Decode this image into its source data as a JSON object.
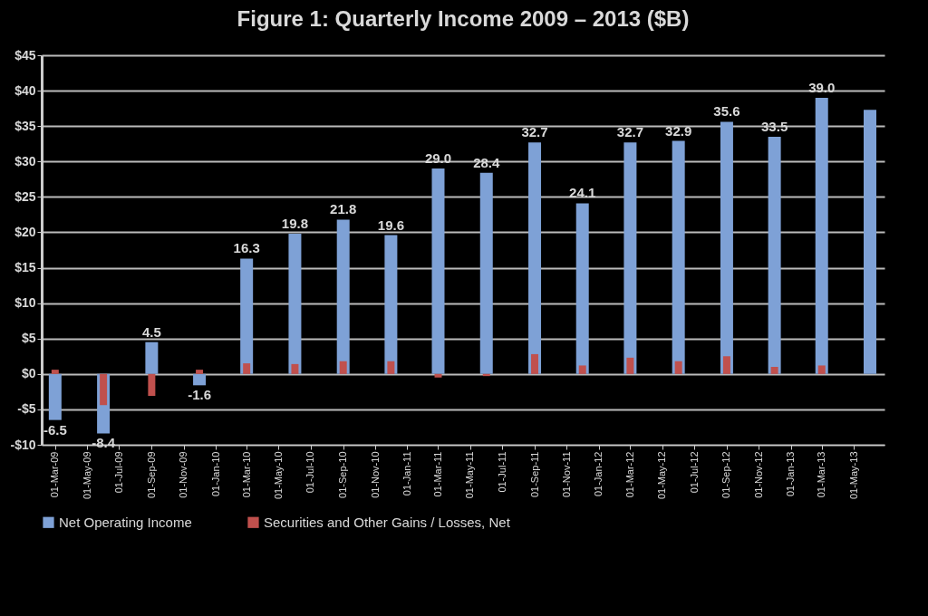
{
  "chart_data": {
    "type": "bar",
    "title": "Figure 1: Quarterly Income 2009 – 2013 ($B)",
    "x": [
      "2009-03",
      "2009-06",
      "2009-09",
      "2009-12",
      "2010-03",
      "2010-06",
      "2010-09",
      "2010-12",
      "2011-03",
      "2011-06",
      "2011-09",
      "2011-12",
      "2012-03",
      "2012-06",
      "2012-09",
      "2012-12",
      "2013-03",
      "2013-06"
    ],
    "series": [
      {
        "name": "Net Operating Income",
        "color": "#7ea1d6",
        "values": [
          -6.5,
          -8.4,
          4.5,
          -1.6,
          16.3,
          19.8,
          21.8,
          19.6,
          29.0,
          28.4,
          32.7,
          24.1,
          32.7,
          32.9,
          35.6,
          33.5,
          39.0,
          37.3
        ],
        "value_labels": [
          "-6.5",
          "-8.4",
          "4.5",
          "-1.6",
          "16.3",
          "19.8",
          "21.8",
          "19.6",
          "29.0",
          "28.4",
          "32.7",
          "24.1",
          "32.7",
          "32.9",
          "35.6",
          "33.5",
          "39.0",
          null
        ]
      },
      {
        "name": "Securities and Other Gains / Losses, Net",
        "color": "#c0504d",
        "values": [
          0.6,
          -4.4,
          -3.1,
          0.6,
          1.5,
          1.4,
          1.8,
          1.8,
          -0.5,
          -0.3,
          2.8,
          1.2,
          2.3,
          1.8,
          2.5,
          1.0,
          1.2,
          null
        ]
      }
    ],
    "ylim": [
      -10,
      45
    ],
    "yticks": [
      {
        "value": -10,
        "label": "-$10"
      },
      {
        "value": -5,
        "label": "-$5"
      },
      {
        "value": 0,
        "label": "$0"
      },
      {
        "value": 5,
        "label": "$5"
      },
      {
        "value": 10,
        "label": "$10"
      },
      {
        "value": 15,
        "label": "$15"
      },
      {
        "value": 20,
        "label": "$20"
      },
      {
        "value": 25,
        "label": "$25"
      },
      {
        "value": 30,
        "label": "$30"
      },
      {
        "value": 35,
        "label": "$35"
      },
      {
        "value": 40,
        "label": "$40"
      },
      {
        "value": 45,
        "label": "$45"
      }
    ],
    "xlim": [
      "2009-02-12",
      "2013-06-20"
    ],
    "xticks": [
      {
        "value": "2009-03-01",
        "label": "01-Mar-09"
      },
      {
        "value": "2009-05-01",
        "label": "01-May-09"
      },
      {
        "value": "2009-07-01",
        "label": "01-Jul-09"
      },
      {
        "value": "2009-09-01",
        "label": "01-Sep-09"
      },
      {
        "value": "2009-11-01",
        "label": "01-Nov-09"
      },
      {
        "value": "2010-01-01",
        "label": "01-Jan-10"
      },
      {
        "value": "2010-03-01",
        "label": "01-Mar-10"
      },
      {
        "value": "2010-05-01",
        "label": "01-May-10"
      },
      {
        "value": "2010-07-01",
        "label": "01-Jul-10"
      },
      {
        "value": "2010-09-01",
        "label": "01-Sep-10"
      },
      {
        "value": "2010-11-01",
        "label": "01-Nov-10"
      },
      {
        "value": "2011-01-01",
        "label": "01-Jan-11"
      },
      {
        "value": "2011-03-01",
        "label": "01-Mar-11"
      },
      {
        "value": "2011-05-01",
        "label": "01-May-11"
      },
      {
        "value": "2011-07-01",
        "label": "01-Jul-11"
      },
      {
        "value": "2011-09-01",
        "label": "01-Sep-11"
      },
      {
        "value": "2011-11-01",
        "label": "01-Nov-11"
      },
      {
        "value": "2012-01-01",
        "label": "01-Jan-12"
      },
      {
        "value": "2012-03-01",
        "label": "01-Mar-12"
      },
      {
        "value": "2012-05-01",
        "label": "01-May-12"
      },
      {
        "value": "2012-07-01",
        "label": "01-Jul-12"
      },
      {
        "value": "2012-09-01",
        "label": "01-Sep-12"
      },
      {
        "value": "2012-11-01",
        "label": "01-Nov-12"
      },
      {
        "value": "2013-01-01",
        "label": "01-Jan-13"
      },
      {
        "value": "2013-03-01",
        "label": "01-Mar-13"
      },
      {
        "value": "2013-05-01",
        "label": "01-May-13"
      }
    ],
    "grid": "y",
    "legend": "bottom"
  }
}
